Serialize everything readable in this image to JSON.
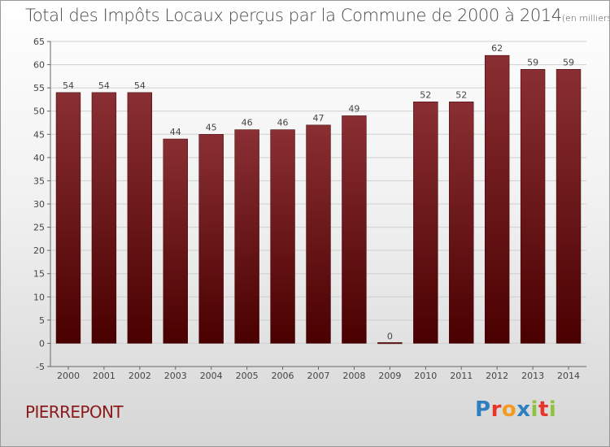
{
  "header": {
    "title": "Total des Impôts Locaux perçus par la Commune de 2000 à 2014",
    "unit": "(en milliers d'€)"
  },
  "footer": {
    "commune": "PIERREPONT",
    "logo_letters": [
      "P",
      "r",
      "o",
      "x",
      "i",
      "t",
      "i"
    ],
    "logo_colors": [
      "#2e7fc0",
      "#e8352a",
      "#f39a1f",
      "#2e7fc0",
      "#8fc23f",
      "#e8352a",
      "#8fc23f"
    ]
  },
  "colors": {
    "bar_top": "#8a2f33",
    "bar_bottom": "#4a0000",
    "grid": "#cfcfcf",
    "axis": "#666666"
  },
  "chart_data": {
    "type": "bar",
    "title": "Total des Impôts Locaux perçus par la Commune de 2000 à 2014",
    "xlabel": "",
    "ylabel": "",
    "categories": [
      "2000",
      "2001",
      "2002",
      "2003",
      "2004",
      "2005",
      "2006",
      "2007",
      "2008",
      "2009",
      "2010",
      "2011",
      "2012",
      "2013",
      "2014"
    ],
    "values": [
      54,
      54,
      54,
      44,
      45,
      46,
      46,
      47,
      49,
      0,
      52,
      52,
      62,
      59,
      59
    ],
    "ylim": [
      -5,
      65
    ],
    "yticks": [
      -5,
      0,
      5,
      10,
      15,
      20,
      25,
      30,
      35,
      40,
      45,
      50,
      55,
      60,
      65
    ],
    "grid": true,
    "data_labels": true
  }
}
